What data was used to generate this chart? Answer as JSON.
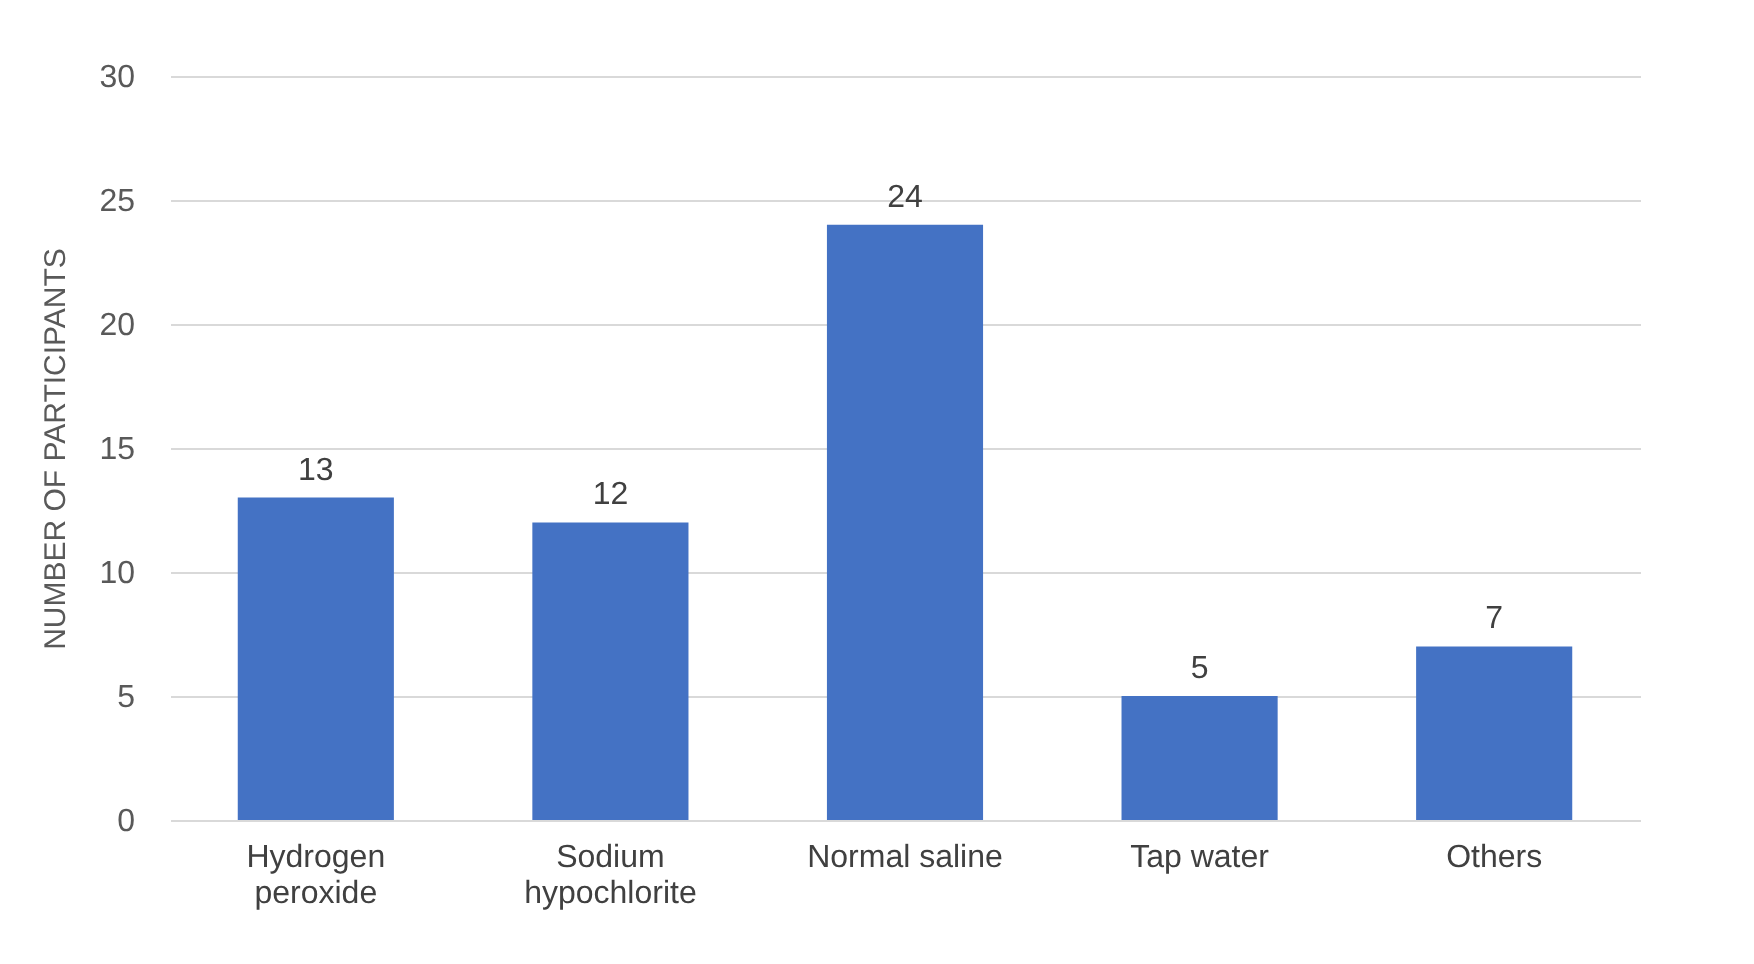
{
  "chart_data": {
    "type": "bar",
    "ylabel": "NUMBER OF PARTICIPANTS",
    "categories": [
      "Hydrogen peroxide",
      "Sodium hypochlorite",
      "Normal saline",
      "Tap water",
      "Others"
    ],
    "values": [
      13,
      12,
      24,
      5,
      7
    ],
    "color": "#4472c4",
    "data_labels": true,
    "ylim": [
      0,
      30
    ],
    "yticks": [
      0,
      5,
      10,
      15,
      20,
      25,
      30
    ],
    "grid": "y"
  }
}
